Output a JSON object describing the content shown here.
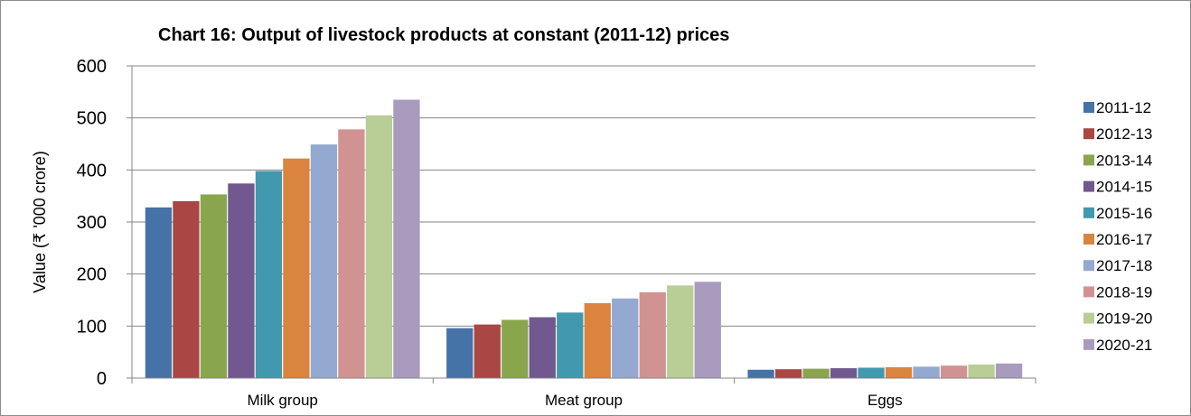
{
  "chart_data": {
    "type": "bar",
    "title": "Chart 16: Output of livestock products at constant (2011-12) prices",
    "ylabel": "Value (₹ '000 crore)",
    "xlabel": "",
    "ylim": [
      0,
      600
    ],
    "yticks": [
      0,
      100,
      200,
      300,
      400,
      500,
      600
    ],
    "grid": true,
    "legend": "right",
    "categories": [
      "Milk group",
      "Meat group",
      "Eggs"
    ],
    "series": [
      {
        "name": "2011-12",
        "color": "#4572a7",
        "values": [
          328,
          96,
          16
        ]
      },
      {
        "name": "2012-13",
        "color": "#aa4643",
        "values": [
          340,
          103,
          17
        ]
      },
      {
        "name": "2013-14",
        "color": "#89a54e",
        "values": [
          353,
          112,
          18
        ]
      },
      {
        "name": "2014-15",
        "color": "#71588f",
        "values": [
          374,
          117,
          19
        ]
      },
      {
        "name": "2015-16",
        "color": "#4198af",
        "values": [
          398,
          126,
          20
        ]
      },
      {
        "name": "2016-17",
        "color": "#db843d",
        "values": [
          422,
          144,
          21
        ]
      },
      {
        "name": "2017-18",
        "color": "#93a9cf",
        "values": [
          449,
          153,
          22
        ]
      },
      {
        "name": "2018-19",
        "color": "#d19392",
        "values": [
          478,
          165,
          24
        ]
      },
      {
        "name": "2019-20",
        "color": "#b9cd96",
        "values": [
          505,
          178,
          26
        ]
      },
      {
        "name": "2020-21",
        "color": "#a99bbd",
        "values": [
          535,
          185,
          28
        ]
      }
    ]
  }
}
